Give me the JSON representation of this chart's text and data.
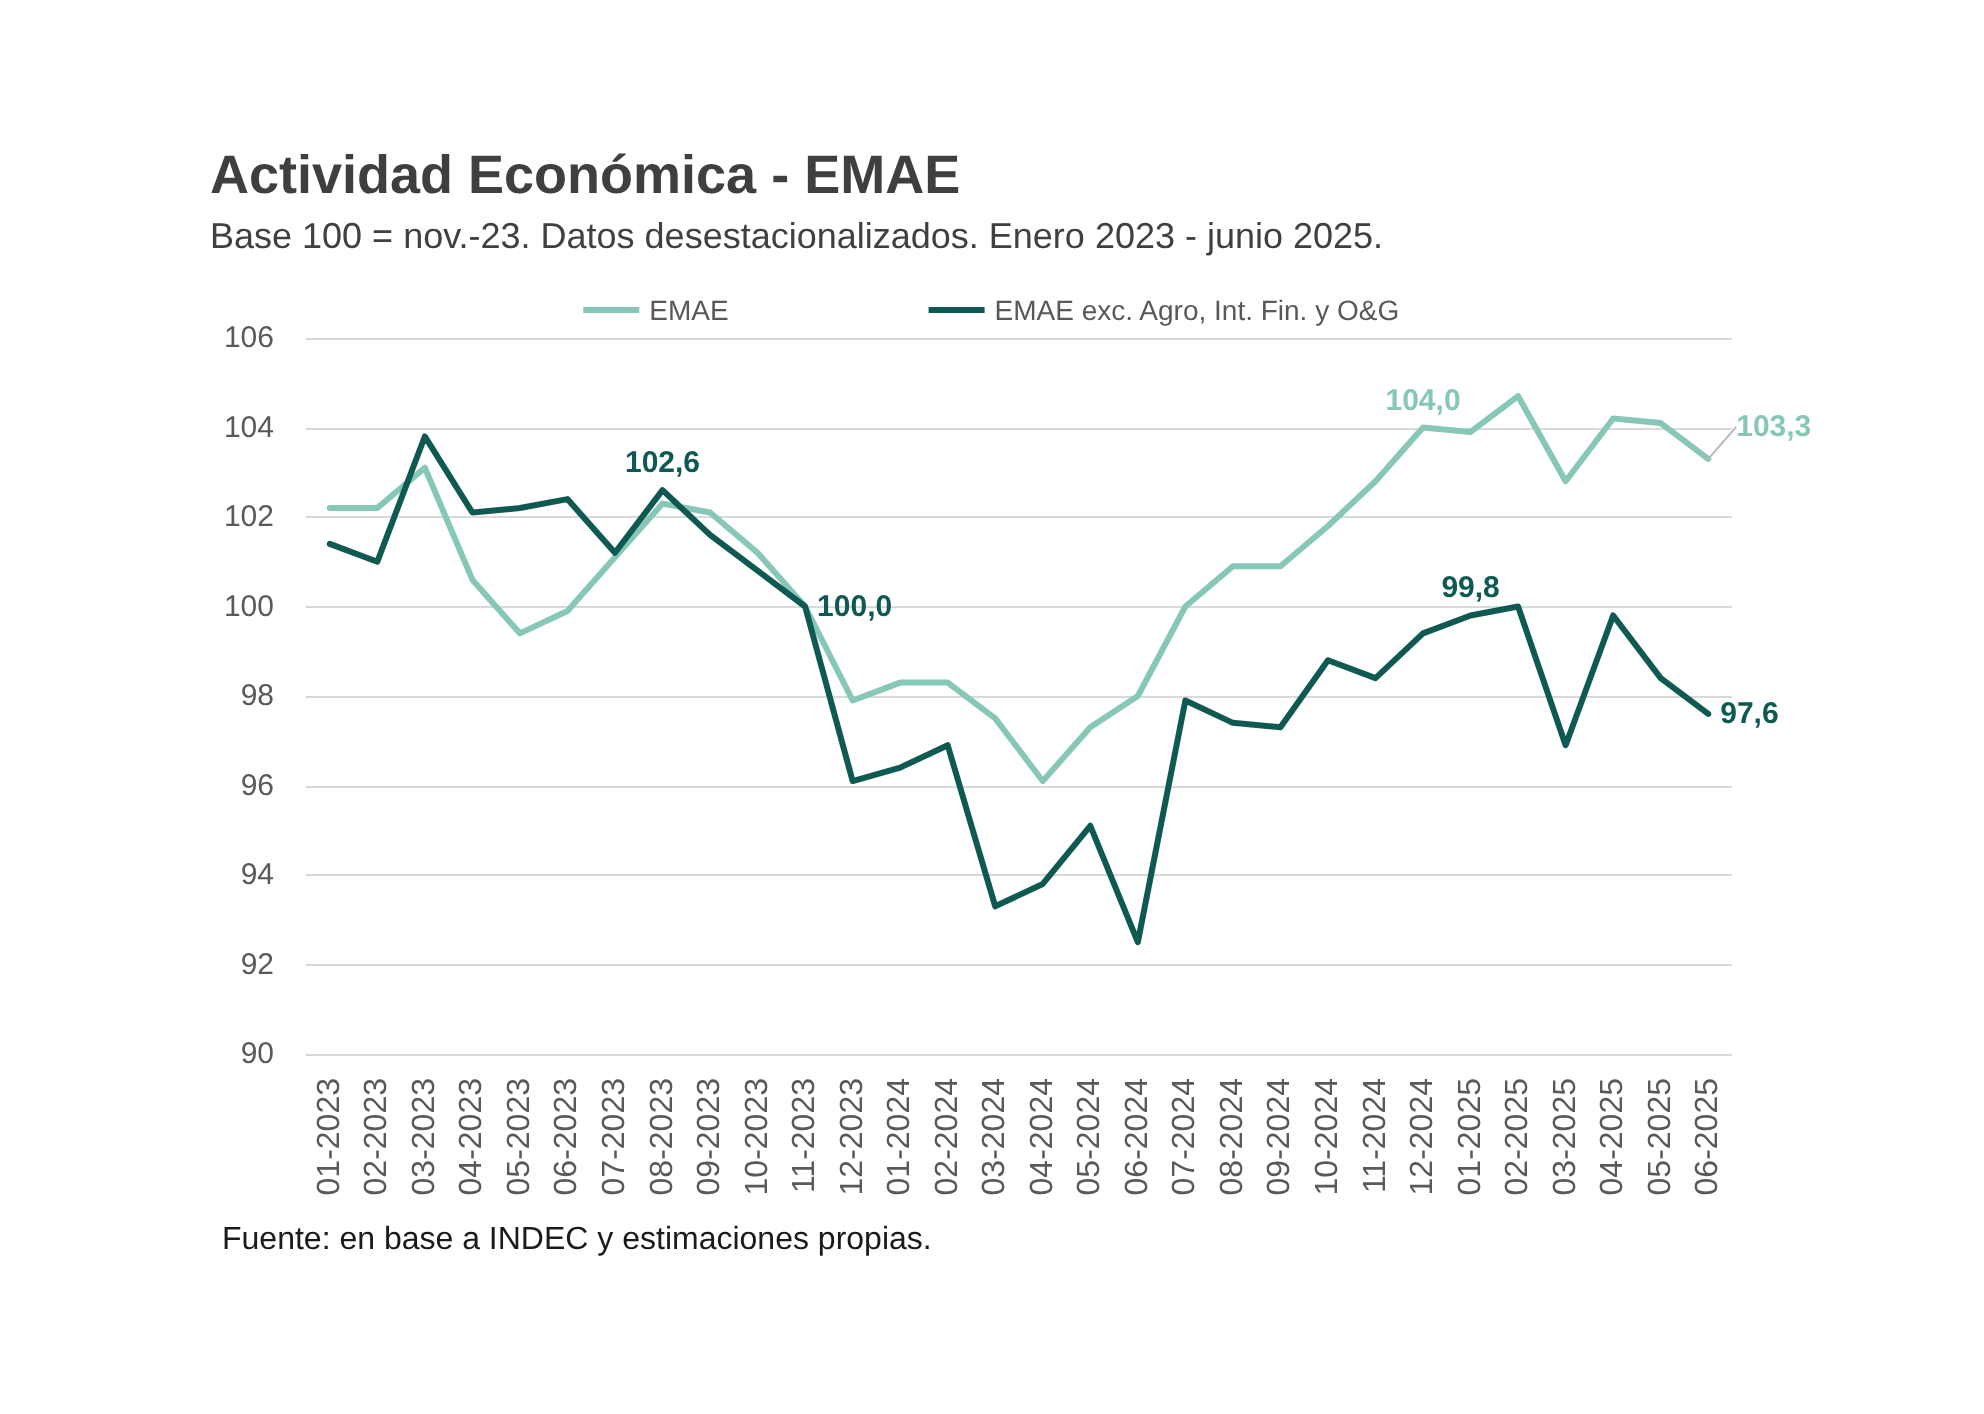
{
  "chart_data": {
    "type": "line",
    "title": "Actividad Económica - EMAE",
    "subtitle": "Base 100 = nov.-23. Datos desestacionalizados. Enero 2023 - junio 2025.",
    "annotations": [
      "Fuente: en base a INDEC y estimaciones propias."
    ],
    "categories": [
      "01-2023",
      "02-2023",
      "03-2023",
      "04-2023",
      "05-2023",
      "06-2023",
      "07-2023",
      "08-2023",
      "09-2023",
      "10-2023",
      "11-2023",
      "12-2023",
      "01-2024",
      "02-2024",
      "03-2024",
      "04-2024",
      "05-2024",
      "06-2024",
      "07-2024",
      "08-2024",
      "09-2024",
      "10-2024",
      "11-2024",
      "12-2024",
      "01-2025",
      "02-2025",
      "03-2025",
      "04-2025",
      "05-2025",
      "06-2025"
    ],
    "series": [
      {
        "name": "EMAE",
        "color": "#86c7b8",
        "values": [
          102.2,
          102.2,
          103.1,
          100.6,
          99.4,
          99.9,
          101.1,
          102.3,
          102.1,
          101.2,
          100.0,
          97.9,
          98.3,
          98.3,
          97.5,
          96.1,
          97.3,
          98.0,
          100.0,
          100.9,
          100.9,
          101.8,
          102.8,
          104.0,
          103.9,
          104.7,
          102.8,
          104.2,
          104.1,
          103.3
        ],
        "value_labels": [
          null,
          null,
          null,
          null,
          null,
          null,
          null,
          null,
          null,
          null,
          null,
          null,
          null,
          null,
          null,
          null,
          null,
          null,
          null,
          null,
          null,
          null,
          null,
          "104,0",
          null,
          null,
          null,
          null,
          null,
          "103,3"
        ]
      },
      {
        "name": "EMAE exc. Agro, Int. Fin. y O&G",
        "color": "#0e5a52",
        "values": [
          101.4,
          101.0,
          103.8,
          102.1,
          102.2,
          102.4,
          101.2,
          102.6,
          101.6,
          100.8,
          100.0,
          96.1,
          96.4,
          96.9,
          93.3,
          93.8,
          95.1,
          92.5,
          97.9,
          97.4,
          97.3,
          98.8,
          98.4,
          99.4,
          99.8,
          100.0,
          96.9,
          99.8,
          98.4,
          97.6
        ],
        "value_labels": [
          null,
          null,
          null,
          null,
          null,
          null,
          null,
          "102,6",
          null,
          null,
          "100,0",
          null,
          null,
          null,
          null,
          null,
          null,
          null,
          null,
          null,
          null,
          null,
          null,
          null,
          "99,8",
          null,
          null,
          null,
          null,
          "97,6"
        ]
      }
    ],
    "ylim": [
      90,
      106
    ],
    "yticks": [
      90,
      92,
      94,
      96,
      98,
      100,
      102,
      104,
      106
    ],
    "grid": "y",
    "legend": "top",
    "marker": "none",
    "line_style": "solid"
  }
}
